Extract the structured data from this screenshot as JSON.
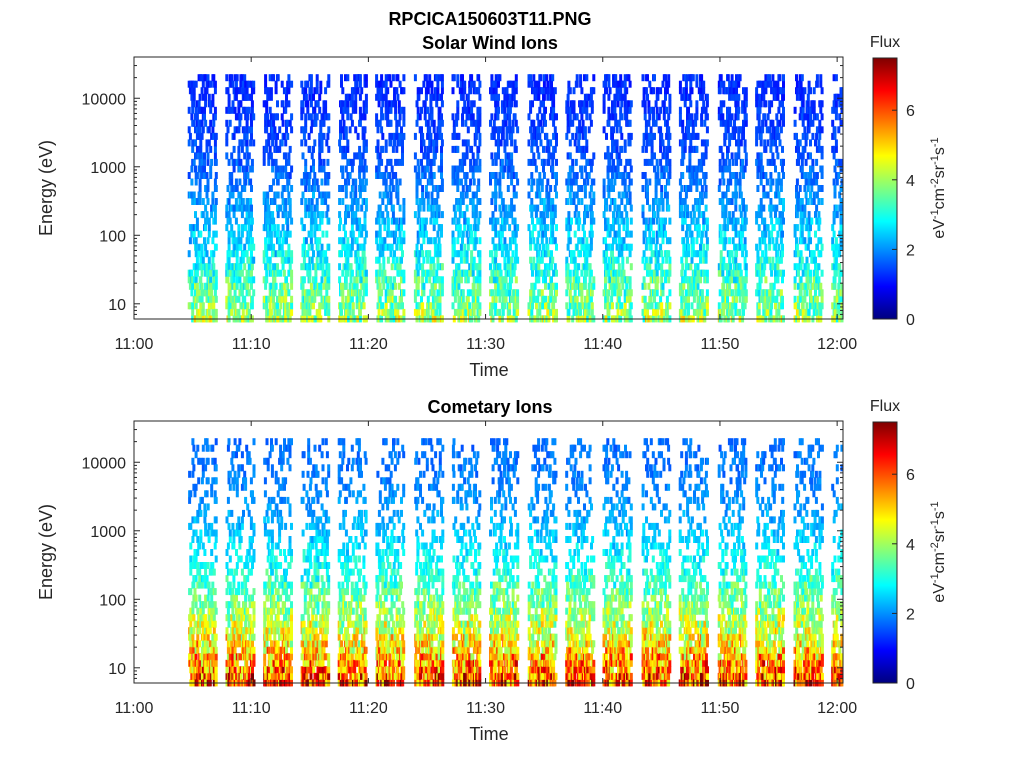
{
  "figure_title": "RPCICA150603T11.PNG",
  "colormap": [
    "#00007f",
    "#0000ff",
    "#007fff",
    "#00ffff",
    "#7fff7f",
    "#ffff00",
    "#ff7f00",
    "#ff0000",
    "#7f0000"
  ],
  "chart_data": [
    {
      "type": "heatmap",
      "title": "Solar Wind Ions",
      "xlabel": "Time",
      "ylabel": "Energy (eV)",
      "x_ticks": [
        "11:00",
        "11:10",
        "11:20",
        "11:30",
        "11:40",
        "11:50",
        "12:00"
      ],
      "x_range_minutes": [
        0,
        60.5
      ],
      "y_scale": "log",
      "y_ticks": [
        "10",
        "100",
        "1000",
        "10000"
      ],
      "y_range": [
        6,
        40000
      ],
      "colorbar": {
        "title": "Flux",
        "label": "eV-1cm-2sr-1s-1",
        "range": [
          0,
          7.5
        ],
        "ticks": [
          "0",
          "2",
          "4",
          "6"
        ]
      },
      "sweep_start_minutes": [
        4.6,
        7.8,
        11.0,
        14.2,
        17.4,
        20.6,
        23.9,
        27.1,
        30.3,
        33.6,
        36.8,
        40.0,
        43.3,
        46.5,
        49.8,
        53.0,
        56.3,
        59.5
      ],
      "peak_flux_low_energy": 4.5,
      "peak_flux_high_energy": 1.0
    },
    {
      "type": "heatmap",
      "title": "Cometary Ions",
      "xlabel": "Time",
      "ylabel": "Energy (eV)",
      "x_ticks": [
        "11:00",
        "11:10",
        "11:20",
        "11:30",
        "11:40",
        "11:50",
        "12:00"
      ],
      "x_range_minutes": [
        0,
        60.5
      ],
      "y_scale": "log",
      "y_ticks": [
        "10",
        "100",
        "1000",
        "10000"
      ],
      "y_range": [
        6,
        40000
      ],
      "colorbar": {
        "title": "Flux",
        "label": "eV-1cm-2sr-1s-1",
        "range": [
          0,
          7.5
        ],
        "ticks": [
          "0",
          "2",
          "4",
          "6"
        ]
      },
      "sweep_start_minutes": [
        4.6,
        7.8,
        11.0,
        14.2,
        17.4,
        20.6,
        23.9,
        27.1,
        30.3,
        33.6,
        36.8,
        40.0,
        43.3,
        46.5,
        49.8,
        53.0,
        56.3,
        59.5
      ],
      "peak_flux_low_energy": 7.0,
      "peak_flux_high_energy": 1.5
    }
  ]
}
